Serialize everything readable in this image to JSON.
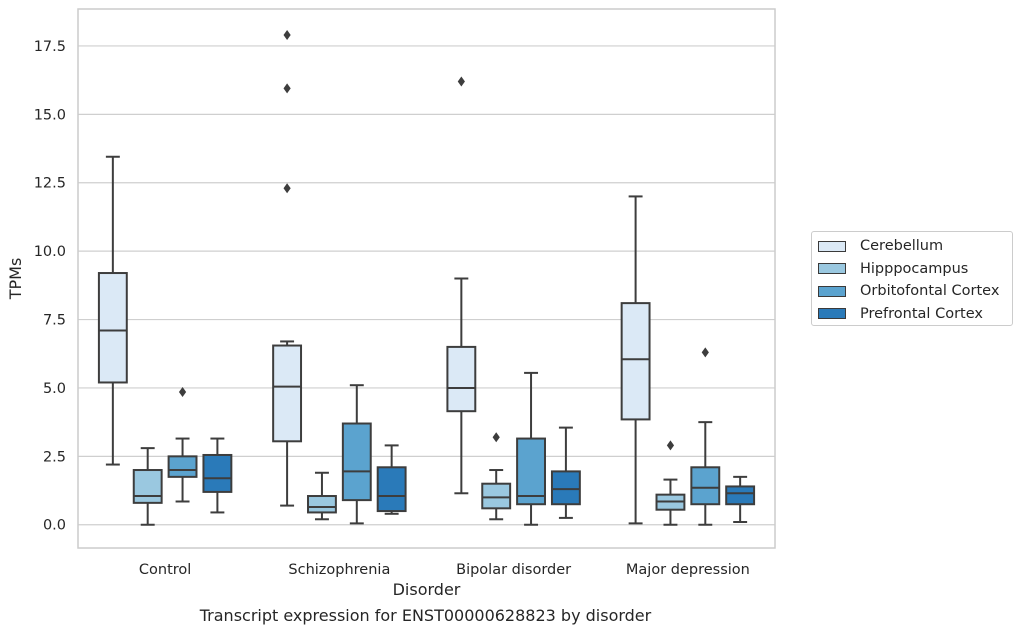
{
  "caption": "Transcript expression for ENST00000628823 by disorder",
  "chart_data": {
    "type": "box",
    "xlabel": "Disorder",
    "ylabel": "TPMs",
    "ylim": [
      -0.85,
      18.85
    ],
    "yticks": [
      0.0,
      2.5,
      5.0,
      7.5,
      10.0,
      12.5,
      15.0,
      17.5
    ],
    "ytick_labels": [
      "0.0",
      "2.5",
      "5.0",
      "7.5",
      "10.0",
      "12.5",
      "15.0",
      "17.5"
    ],
    "grid": "horizontal",
    "legend_position": "right",
    "categories": [
      "Control",
      "Schizophrenia",
      "Bipolar disorder",
      "Major depression"
    ],
    "series": [
      {
        "name": "Cerebellum",
        "color": "#dbe9f6",
        "boxes": [
          {
            "whisker_low": 2.2,
            "q1": 5.2,
            "median": 7.1,
            "q3": 9.2,
            "whisker_high": 13.45,
            "outliers": []
          },
          {
            "whisker_low": 0.7,
            "q1": 3.05,
            "median": 5.05,
            "q3": 6.55,
            "whisker_high": 6.7,
            "outliers": [
              17.9,
              15.95,
              12.3
            ]
          },
          {
            "whisker_low": 1.15,
            "q1": 4.15,
            "median": 5.0,
            "q3": 6.5,
            "whisker_high": 9.0,
            "outliers": [
              16.2
            ]
          },
          {
            "whisker_low": 0.05,
            "q1": 3.85,
            "median": 6.05,
            "q3": 8.1,
            "whisker_high": 12.0,
            "outliers": []
          }
        ]
      },
      {
        "name": "Hipppocampus",
        "color": "#9ac8e0",
        "boxes": [
          {
            "whisker_low": 0.0,
            "q1": 0.8,
            "median": 1.05,
            "q3": 2.0,
            "whisker_high": 2.8,
            "outliers": []
          },
          {
            "whisker_low": 0.2,
            "q1": 0.45,
            "median": 0.65,
            "q3": 1.05,
            "whisker_high": 1.9,
            "outliers": []
          },
          {
            "whisker_low": 0.2,
            "q1": 0.6,
            "median": 1.0,
            "q3": 1.5,
            "whisker_high": 2.0,
            "outliers": [
              3.2
            ]
          },
          {
            "whisker_low": 0.0,
            "q1": 0.55,
            "median": 0.85,
            "q3": 1.1,
            "whisker_high": 1.65,
            "outliers": [
              2.9
            ]
          }
        ]
      },
      {
        "name": "Orbitofontal Cortex",
        "color": "#5ba3cf",
        "boxes": [
          {
            "whisker_low": 0.85,
            "q1": 1.75,
            "median": 2.0,
            "q3": 2.5,
            "whisker_high": 3.15,
            "outliers": [
              4.85
            ]
          },
          {
            "whisker_low": 0.05,
            "q1": 0.9,
            "median": 1.95,
            "q3": 3.7,
            "whisker_high": 5.1,
            "outliers": []
          },
          {
            "whisker_low": 0.0,
            "q1": 0.75,
            "median": 1.05,
            "q3": 3.15,
            "whisker_high": 5.55,
            "outliers": []
          },
          {
            "whisker_low": 0.0,
            "q1": 0.75,
            "median": 1.35,
            "q3": 2.1,
            "whisker_high": 3.75,
            "outliers": [
              6.3
            ]
          }
        ]
      },
      {
        "name": "Prefrontal Cortex",
        "color": "#2a7ab9",
        "boxes": [
          {
            "whisker_low": 0.45,
            "q1": 1.2,
            "median": 1.7,
            "q3": 2.55,
            "whisker_high": 3.15,
            "outliers": []
          },
          {
            "whisker_low": 0.4,
            "q1": 0.5,
            "median": 1.05,
            "q3": 2.1,
            "whisker_high": 2.9,
            "outliers": []
          },
          {
            "whisker_low": 0.25,
            "q1": 0.75,
            "median": 1.3,
            "q3": 1.95,
            "whisker_high": 3.55,
            "outliers": []
          },
          {
            "whisker_low": 0.1,
            "q1": 0.75,
            "median": 1.15,
            "q3": 1.4,
            "whisker_high": 1.75,
            "outliers": []
          }
        ]
      }
    ]
  }
}
